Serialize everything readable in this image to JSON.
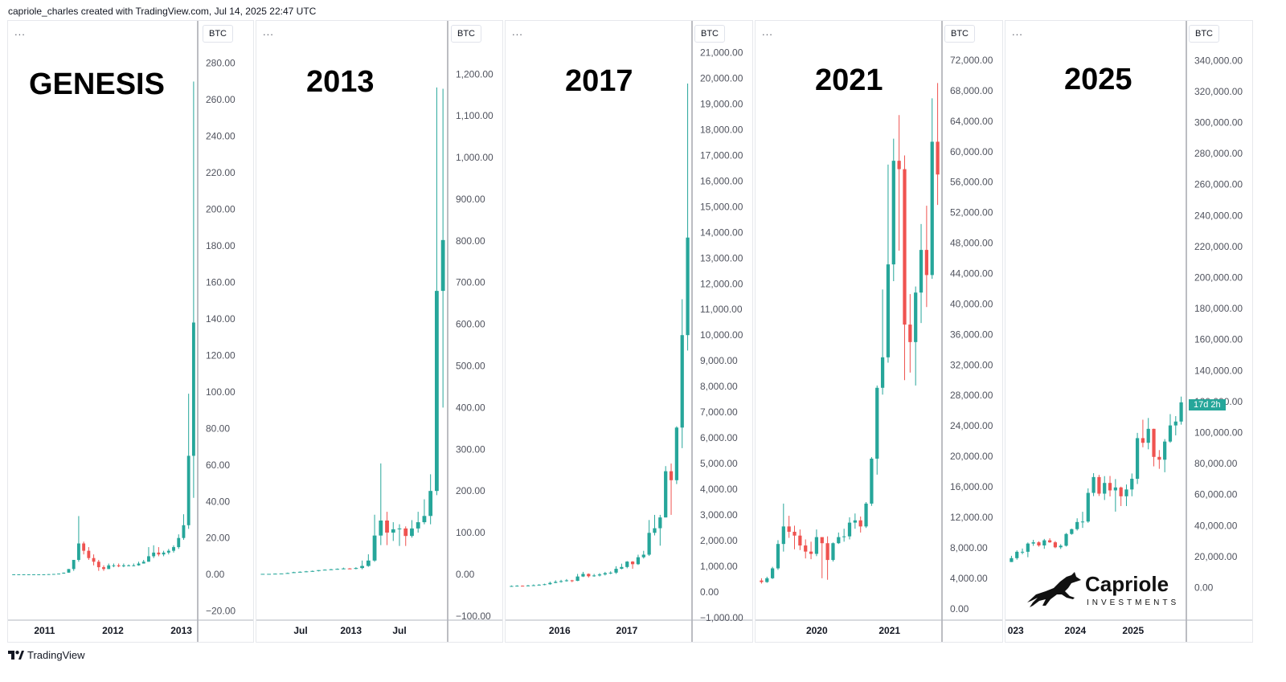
{
  "header": {
    "credit": "capriole_charles created with TradingView.com, Jul 14, 2025 22:47 UTC"
  },
  "footer": {
    "brand": "TradingView"
  },
  "panel_common": {
    "menu_dots": "...",
    "currency": "BTC"
  },
  "logo": {
    "name": "Capriole",
    "sub": "INVESTMENTS"
  },
  "colors": {
    "up": "#26a69a",
    "down": "#ef5350",
    "axis_text": "#50535e",
    "grid": "#e0e3eb"
  },
  "chart_data": [
    {
      "type": "candlestick",
      "title": "GENESIS",
      "currency": "BTC",
      "ylim": [
        -25,
        290
      ],
      "yticks": [
        -20,
        0,
        20,
        40,
        60,
        80,
        100,
        120,
        140,
        160,
        180,
        200,
        220,
        240,
        260,
        280
      ],
      "ytick_labels": [
        "−20.00",
        "0.00",
        "20.00",
        "40.00",
        "60.00",
        "80.00",
        "100.00",
        "120.00",
        "140.00",
        "160.00",
        "180.00",
        "200.00",
        "220.00",
        "240.00",
        "260.00",
        "280.00"
      ],
      "xlabels": [
        {
          "label": "2011",
          "pos": 0.18
        },
        {
          "label": "2012",
          "pos": 0.55
        },
        {
          "label": "2013",
          "pos": 0.92
        }
      ],
      "candles": [
        [
          0.1,
          0.1,
          0.1,
          0.1
        ],
        [
          0.1,
          0.1,
          0.1,
          0.1
        ],
        [
          0.1,
          0.1,
          0.1,
          0.1
        ],
        [
          0.1,
          0.1,
          0.1,
          0.1
        ],
        [
          0.1,
          0.1,
          0.1,
          0.1
        ],
        [
          0.1,
          0.1,
          0.1,
          0.1
        ],
        [
          0.1,
          0.1,
          0.1,
          0.1
        ],
        [
          0.1,
          0.2,
          0.1,
          0.2
        ],
        [
          0.2,
          0.3,
          0.2,
          0.3
        ],
        [
          0.3,
          0.5,
          0.3,
          0.5
        ],
        [
          0.5,
          1,
          0.5,
          1
        ],
        [
          1,
          3,
          1,
          3
        ],
        [
          3,
          8,
          2,
          8
        ],
        [
          8,
          17,
          7,
          32
        ],
        [
          17,
          13,
          11,
          18
        ],
        [
          13,
          9,
          8,
          15
        ],
        [
          9,
          7,
          5,
          11
        ],
        [
          7,
          4,
          2,
          8
        ],
        [
          4,
          3,
          2,
          5
        ],
        [
          3,
          5,
          3,
          6
        ],
        [
          5,
          5,
          4,
          6
        ],
        [
          5,
          4.5,
          4,
          6
        ],
        [
          4.5,
          5,
          4,
          6
        ],
        [
          5,
          5,
          4.5,
          5.5
        ],
        [
          5,
          5,
          4.5,
          6
        ],
        [
          5,
          6,
          4.8,
          7
        ],
        [
          6,
          7,
          6,
          8
        ],
        [
          7,
          10,
          7,
          15
        ],
        [
          10,
          12,
          9,
          16
        ],
        [
          12,
          11,
          10,
          15
        ],
        [
          11,
          12,
          10,
          13
        ],
        [
          12,
          13,
          11,
          14
        ],
        [
          13,
          15,
          12,
          16
        ],
        [
          15,
          20,
          14,
          22
        ],
        [
          20,
          27,
          19,
          33
        ],
        [
          27,
          65,
          25,
          99
        ],
        [
          65,
          138,
          42,
          270
        ]
      ]
    },
    {
      "type": "candlestick",
      "title": "2013",
      "currency": "BTC",
      "ylim": [
        -110,
        1270
      ],
      "yticks": [
        -100,
        0,
        100,
        200,
        300,
        400,
        500,
        600,
        700,
        800,
        900,
        1000,
        1100,
        1200
      ],
      "ytick_labels": [
        "−100.00",
        "0.00",
        "100.00",
        "200.00",
        "300.00",
        "400.00",
        "500.00",
        "600.00",
        "700.00",
        "800.00",
        "900.00",
        "1,000.00",
        "1,100.00",
        "1,200.00"
      ],
      "xlabels": [
        {
          "label": "Jul",
          "pos": 0.22
        },
        {
          "label": "2013",
          "pos": 0.49
        },
        {
          "label": "Jul",
          "pos": 0.75
        }
      ],
      "candles": [
        [
          1,
          1,
          1,
          1
        ],
        [
          1,
          1,
          1,
          1
        ],
        [
          1,
          1.5,
          1,
          2
        ],
        [
          1.5,
          2,
          1,
          2
        ],
        [
          2,
          3,
          2,
          4
        ],
        [
          3,
          5,
          3,
          6
        ],
        [
          5,
          6,
          4,
          7
        ],
        [
          6,
          7,
          5,
          8
        ],
        [
          7,
          8,
          6,
          9
        ],
        [
          8,
          10,
          7,
          10
        ],
        [
          10,
          11,
          10,
          12
        ],
        [
          11,
          12,
          10,
          13
        ],
        [
          12,
          13,
          11,
          14
        ],
        [
          13,
          14,
          12,
          16
        ],
        [
          14,
          13,
          12,
          15
        ],
        [
          13,
          15,
          12,
          17
        ],
        [
          15,
          20,
          12,
          33
        ],
        [
          20,
          33,
          18,
          48
        ],
        [
          33,
          93,
          30,
          143
        ],
        [
          93,
          129,
          70,
          266
        ],
        [
          129,
          100,
          70,
          150
        ],
        [
          100,
          108,
          80,
          125
        ],
        [
          108,
          110,
          68,
          120
        ],
        [
          110,
          92,
          68,
          115
        ],
        [
          92,
          110,
          88,
          130
        ],
        [
          110,
          125,
          100,
          150
        ],
        [
          125,
          140,
          120,
          180
        ],
        [
          140,
          200,
          120,
          240
        ],
        [
          200,
          680,
          190,
          1168
        ],
        [
          680,
          802,
          400,
          1165
        ]
      ]
    },
    {
      "type": "candlestick",
      "title": "2017",
      "currency": "BTC",
      "ylim": [
        -1100,
        21300
      ],
      "yticks": [
        -1000,
        0,
        1000,
        2000,
        3000,
        4000,
        5000,
        6000,
        7000,
        8000,
        9000,
        10000,
        11000,
        12000,
        13000,
        14000,
        15000,
        16000,
        17000,
        18000,
        19000,
        20000,
        21000
      ],
      "ytick_labels": [
        "−1,000.00",
        "0.00",
        "1,000.00",
        "2,000.00",
        "3,000.00",
        "4,000.00",
        "5,000.00",
        "6,000.00",
        "7,000.00",
        "8,000.00",
        "9,000.00",
        "10,000.00",
        "11,000.00",
        "12,000.00",
        "13,000.00",
        "14,000.00",
        "15,000.00",
        "16,000.00",
        "17,000.00",
        "18,000.00",
        "19,000.00",
        "20,000.00",
        "21,000.00"
      ],
      "xlabels": [
        {
          "label": "2016",
          "pos": 0.28
        },
        {
          "label": "2017",
          "pos": 0.65
        }
      ],
      "candles": [
        [
          220,
          230,
          200,
          250
        ],
        [
          230,
          240,
          210,
          260
        ],
        [
          240,
          230,
          215,
          250
        ],
        [
          230,
          250,
          220,
          270
        ],
        [
          250,
          260,
          240,
          290
        ],
        [
          260,
          280,
          250,
          300
        ],
        [
          280,
          300,
          260,
          320
        ],
        [
          300,
          350,
          280,
          400
        ],
        [
          350,
          390,
          340,
          450
        ],
        [
          390,
          420,
          360,
          470
        ],
        [
          420,
          450,
          400,
          500
        ],
        [
          450,
          430,
          380,
          470
        ],
        [
          430,
          600,
          420,
          700
        ],
        [
          600,
          700,
          580,
          780
        ],
        [
          700,
          610,
          560,
          720
        ],
        [
          610,
          640,
          590,
          700
        ],
        [
          640,
          680,
          600,
          730
        ],
        [
          680,
          730,
          640,
          780
        ],
        [
          730,
          750,
          690,
          800
        ],
        [
          750,
          900,
          700,
          1000
        ],
        [
          900,
          970,
          880,
          1100
        ],
        [
          970,
          1180,
          920,
          1200
        ],
        [
          1180,
          1080,
          900,
          1200
        ],
        [
          1080,
          1350,
          1050,
          1450
        ],
        [
          1350,
          1450,
          1300,
          1600
        ],
        [
          1450,
          2300,
          1400,
          2800
        ],
        [
          2300,
          2480,
          2200,
          3000
        ],
        [
          2480,
          2900,
          1800,
          3000
        ],
        [
          2900,
          4700,
          2900,
          4900
        ],
        [
          4700,
          4350,
          3000,
          5000
        ],
        [
          4350,
          6400,
          4200,
          6450
        ],
        [
          6400,
          10000,
          5600,
          11400
        ],
        [
          10000,
          13800,
          9400,
          19800
        ]
      ]
    },
    {
      "type": "candlestick",
      "title": "2021",
      "currency": "BTC",
      "ylim": [
        -1500,
        74000
      ],
      "yticks": [
        0,
        4000,
        8000,
        12000,
        16000,
        20000,
        24000,
        28000,
        32000,
        36000,
        40000,
        44000,
        48000,
        52000,
        56000,
        60000,
        64000,
        68000,
        72000
      ],
      "ytick_labels": [
        "0.00",
        "4,000.00",
        "8,000.00",
        "12,000.00",
        "16,000.00",
        "20,000.00",
        "24,000.00",
        "28,000.00",
        "32,000.00",
        "36,000.00",
        "40,000.00",
        "44,000.00",
        "48,000.00",
        "52,000.00",
        "56,000.00",
        "60,000.00",
        "64,000.00",
        "68,000.00",
        "72,000.00"
      ],
      "xlabels": [
        {
          "label": "2020",
          "pos": 0.32
        },
        {
          "label": "2021",
          "pos": 0.72
        }
      ],
      "candles": [
        [
          3700,
          3500,
          3300,
          4000
        ],
        [
          3500,
          4000,
          3400,
          4200
        ],
        [
          4000,
          5300,
          3900,
          5500
        ],
        [
          5300,
          8500,
          5100,
          9000
        ],
        [
          8500,
          10800,
          7500,
          13800
        ],
        [
          10800,
          10100,
          9300,
          12200
        ],
        [
          10100,
          9600,
          7800,
          10900
        ],
        [
          9600,
          8300,
          7700,
          10400
        ],
        [
          8300,
          7500,
          6600,
          9100
        ],
        [
          7500,
          7200,
          6500,
          8800
        ],
        [
          7200,
          9400,
          6900,
          10400
        ],
        [
          9400,
          8600,
          4000,
          9200
        ],
        [
          8600,
          6400,
          3800,
          9500
        ],
        [
          6400,
          8600,
          6200,
          8700
        ],
        [
          8600,
          9400,
          8500,
          10000
        ],
        [
          9400,
          9500,
          8800,
          10500
        ],
        [
          9500,
          11300,
          9100,
          12000
        ],
        [
          11300,
          11600,
          10500,
          12500
        ],
        [
          11600,
          10800,
          10000,
          12100
        ],
        [
          10800,
          13800,
          10600,
          14000
        ],
        [
          13800,
          19700,
          13500,
          19900
        ],
        [
          19700,
          29000,
          17600,
          29300
        ],
        [
          29000,
          33000,
          28100,
          41900
        ],
        [
          33000,
          45200,
          32300,
          58300
        ],
        [
          45200,
          58800,
          43000,
          61700
        ],
        [
          58800,
          57700,
          47000,
          64800
        ],
        [
          57700,
          37300,
          30000,
          59500
        ],
        [
          37300,
          35000,
          31000,
          41300
        ],
        [
          35000,
          41500,
          29300,
          42300
        ],
        [
          41500,
          47100,
          37500,
          50500
        ],
        [
          47100,
          43800,
          39600,
          52900
        ],
        [
          43800,
          61300,
          43300,
          67000
        ],
        [
          61300,
          57000,
          53000,
          69000
        ]
      ]
    },
    {
      "type": "candlestick",
      "title": "2025",
      "currency": "BTC",
      "ylim": [
        -21000,
        350000
      ],
      "yticks": [
        -20000,
        0,
        20000,
        40000,
        60000,
        80000,
        100000,
        120000,
        140000,
        160000,
        180000,
        200000,
        220000,
        240000,
        260000,
        280000,
        300000,
        320000,
        340000
      ],
      "ytick_labels": [
        "−20,000.00",
        "0.00",
        "20,000.00",
        "40,000.00",
        "60,000.00",
        "80,000.00",
        "100,000.00",
        "120,000.00",
        "140,000.00",
        "160,000.00",
        "180,000.00",
        "200,000.00",
        "220,000.00",
        "240,000.00",
        "260,000.00",
        "280,000.00",
        "300,000.00",
        "320,000.00",
        "340,000.00"
      ],
      "xlabels": [
        {
          "label": "023",
          "pos": 0.04
        },
        {
          "label": "2024",
          "pos": 0.38
        },
        {
          "label": "2025",
          "pos": 0.71
        }
      ],
      "countdown": {
        "label": "17d 2h",
        "value": 117500
      },
      "candles": [
        [
          16500,
          19000,
          16500,
          20500
        ],
        [
          19000,
          23100,
          18000,
          24000
        ],
        [
          23100,
          23100,
          21500,
          25200
        ],
        [
          23100,
          28400,
          19600,
          29100
        ],
        [
          28400,
          29200,
          26900,
          30800
        ],
        [
          29200,
          27200,
          26400,
          29900
        ],
        [
          27200,
          30500,
          25000,
          31400
        ],
        [
          30500,
          29200,
          28900,
          31800
        ],
        [
          29200,
          26000,
          25400,
          30000
        ],
        [
          26000,
          27000,
          24900,
          28000
        ],
        [
          27000,
          34600,
          26500,
          35200
        ],
        [
          34600,
          37700,
          34100,
          38000
        ],
        [
          37700,
          42300,
          36800,
          44700
        ],
        [
          42300,
          42600,
          38500,
          48900
        ],
        [
          42600,
          61100,
          41800,
          64000
        ],
        [
          61100,
          71300,
          59000,
          73800
        ],
        [
          71300,
          60600,
          59100,
          72700
        ],
        [
          60600,
          67500,
          56500,
          71900
        ],
        [
          67500,
          62700,
          58800,
          72000
        ],
        [
          62700,
          64600,
          49000,
          70000
        ],
        [
          64600,
          58900,
          52600,
          65100
        ],
        [
          58900,
          63300,
          52600,
          66500
        ],
        [
          63300,
          70200,
          58900,
          73600
        ],
        [
          70200,
          96400,
          66800,
          99800
        ],
        [
          96400,
          93400,
          90500,
          108300
        ],
        [
          93400,
          102400,
          89200,
          109400
        ],
        [
          102400,
          84300,
          78200,
          102500
        ],
        [
          84300,
          82500,
          76600,
          88700
        ],
        [
          82500,
          94200,
          74400,
          95800
        ],
        [
          94200,
          104600,
          93400,
          111900
        ],
        [
          104600,
          107100,
          98200,
          110600
        ],
        [
          107100,
          119500,
          105100,
          123200
        ]
      ]
    }
  ]
}
